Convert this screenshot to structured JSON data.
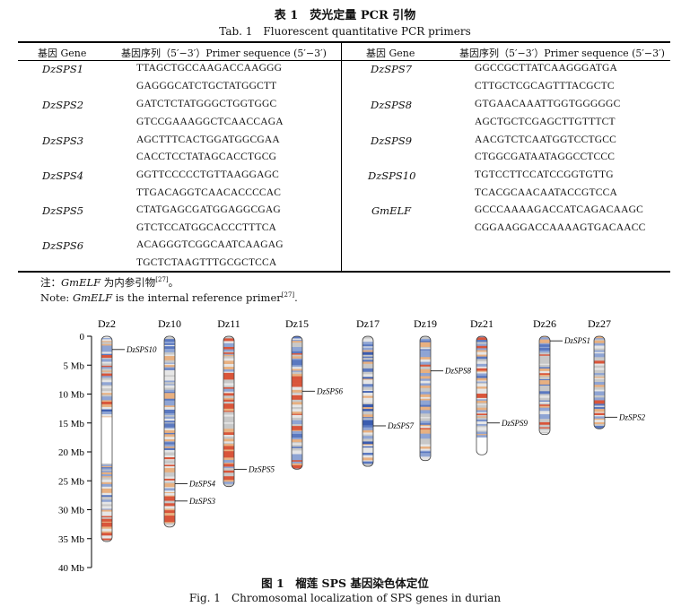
{
  "table": {
    "title_cn": "表 1　荧光定量 PCR 引物",
    "title_en": "Tab. 1　Fluorescent quantitative PCR primers",
    "header": {
      "gene": "基因 Gene",
      "sequence": "基因序列（5′−3′）Primer sequence (5′−3′)"
    },
    "left_rows": [
      {
        "gene": "DzSPS1",
        "seq1": "TTAGCTGCCAAGACCAAGGG",
        "seq2": "GAGGGCATCTGCTATGGCTT"
      },
      {
        "gene": "DzSPS2",
        "seq1": "GATCTCTATGGGCTGGTGGC",
        "seq2": "GTCCGAAAGGCTCAACCAGA"
      },
      {
        "gene": "DzSPS3",
        "seq1": "AGCTTTCACTGGATGGCGAA",
        "seq2": "CACCTCCTATAGCACCTGCG"
      },
      {
        "gene": "DzSPS4",
        "seq1": "GGTTCCCCCTGTTAAGGAGC",
        "seq2": "TTGACAGGTCAACACCCCAC"
      },
      {
        "gene": "DzSPS5",
        "seq1": "CTATGAGCGATGGAGGCGAG",
        "seq2": "GTCTCCATGGCACCCTTTCA"
      },
      {
        "gene": "DzSPS6",
        "seq1": "ACAGGGTCGGCAATCAAGAG",
        "seq2": "TGCTCTAAGTTTGCGCTCCA"
      }
    ],
    "right_rows": [
      {
        "gene": "DzSPS7",
        "seq1": "GGCCGCTTATCAAGGGATGA",
        "seq2": "CTTGCTCGCAGTTTACGCTC"
      },
      {
        "gene": "DzSPS8",
        "seq1": "GTGAACAAATTGGTGGGGGC",
        "seq2": "AGCTGCTCGAGCTTGTTTCT"
      },
      {
        "gene": "DzSPS9",
        "seq1": "AACGTCTCAATGGTCCTGCC",
        "seq2": "CTGGCGATAATAGGCCTCCC"
      },
      {
        "gene": "DzSPS10",
        "seq1": "TGTCCTTCCATCCGGTGTTG",
        "seq2": "TCACGCAACAATACCGTCCA"
      },
      {
        "gene": "GmELF",
        "seq1": "GCCCAAAAGACCATCAGACAAGC",
        "seq2": "CGGAAGGACCAAAAGTGACAACC"
      }
    ],
    "note_cn_prefix": "注：",
    "note_cn_gene": "GmELF",
    "note_cn_text": " 为内参引物",
    "note_cn_ref": "[27]",
    "note_cn_end": "。",
    "note_en_prefix": "Note: ",
    "note_en_gene": "GmELF",
    "note_en_text": " is the internal reference primer",
    "note_en_ref": "[27]",
    "note_en_end": "."
  },
  "figure": {
    "title_cn": "图 1　榴莲 SPS 基因染色体定位",
    "title_en": "Fig. 1　Chromosomal localization of SPS genes in durian",
    "axis_ticks": [
      "0",
      "5 Mb",
      "10 Mb",
      "15 Mb",
      "20 Mb",
      "25 Mb",
      "30 Mb",
      "35 Mb",
      "40 Mb"
    ],
    "chromosomes": [
      {
        "name": "Dz2",
        "length_mb": 35.5,
        "genes": [
          {
            "name": "DzSPS10",
            "pos_mb": 2.3
          }
        ]
      },
      {
        "name": "Dz10",
        "length_mb": 33.0,
        "genes": [
          {
            "name": "DzSPS4",
            "pos_mb": 25.5
          },
          {
            "name": "DzSPS3",
            "pos_mb": 28.5
          }
        ]
      },
      {
        "name": "Dz11",
        "length_mb": 26.0,
        "genes": [
          {
            "name": "DzSPS5",
            "pos_mb": 23.0
          }
        ]
      },
      {
        "name": "Dz15",
        "length_mb": 23.0,
        "genes": [
          {
            "name": "DzSPS6",
            "pos_mb": 9.5
          }
        ]
      },
      {
        "name": "Dz17",
        "length_mb": 22.5,
        "genes": [
          {
            "name": "DzSPS7",
            "pos_mb": 15.5
          }
        ]
      },
      {
        "name": "Dz19",
        "length_mb": 21.5,
        "genes": [
          {
            "name": "DzSPS8",
            "pos_mb": 6.0
          }
        ]
      },
      {
        "name": "Dz21",
        "length_mb": 20.5,
        "genes": [
          {
            "name": "DzSPS9",
            "pos_mb": 15.0
          }
        ]
      },
      {
        "name": "Dz26",
        "length_mb": 17.0,
        "genes": [
          {
            "name": "DzSPS1",
            "pos_mb": 0.8
          }
        ]
      },
      {
        "name": "Dz27",
        "length_mb": 16.0,
        "genes": [
          {
            "name": "DzSPS2",
            "pos_mb": 14.0
          }
        ]
      }
    ],
    "colors": {
      "dense": "#3b5cb0",
      "mid": "#c8c8c8",
      "sparse": "#d9553a",
      "warm": "#e8b080"
    }
  }
}
